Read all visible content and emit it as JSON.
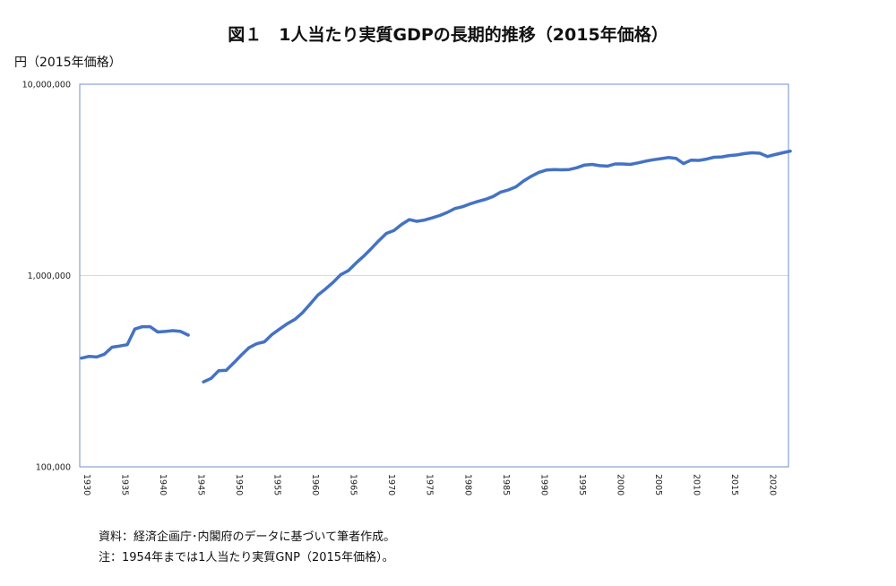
{
  "title": "図１　1人当たり実質GDPの長期的推移（2015年価格）",
  "notes": [
    "資料：経済企画庁･内閣府のデータに基づいて筆者作成。",
    "注：1954年までは1人当たり実質GNP（2015年価格）。"
  ],
  "chart_data": {
    "type": "line",
    "title": "図１　1人当たり実質GDPの長期的推移（2015年価格）",
    "ylabel": "円（2015年価格）",
    "xlabel": "",
    "yscale": "log",
    "ylim": [
      100000,
      10000000
    ],
    "xlim": [
      1930,
      2023
    ],
    "ytick_labels": [
      "100,000",
      "1,000,000",
      "10,000,000"
    ],
    "ytick_values": [
      100000,
      1000000,
      10000000
    ],
    "xtick_labels": [
      "1930",
      "1935",
      "1940",
      "1945",
      "1950",
      "1955",
      "1960",
      "1965",
      "1970",
      "1975",
      "1980",
      "1985",
      "1990",
      "1995",
      "2000",
      "2005",
      "2010",
      "2015",
      "2020"
    ],
    "grid": "horizontal",
    "legend": "none",
    "line_color": "#4472c4",
    "series": [
      {
        "segments": [
          {
            "x": [
              1930,
              1931,
              1932,
              1933,
              1934,
              1935,
              1936,
              1937,
              1938,
              1939,
              1940,
              1941,
              1942,
              1943,
              1944
            ],
            "y": [
              370000,
              378000,
              375000,
              388000,
              422000,
              428000,
              435000,
              525000,
              540000,
              540000,
              507000,
              510000,
              515000,
              510000,
              488000
            ]
          },
          {
            "x": [
              1946,
              1947,
              1948,
              1949,
              1950,
              1951,
              1952,
              1953,
              1954,
              1955,
              1956,
              1957,
              1958,
              1959,
              1960,
              1961,
              1962,
              1963,
              1964,
              1965,
              1966,
              1967,
              1968,
              1969,
              1970,
              1971,
              1972,
              1973,
              1974,
              1975,
              1976,
              1977,
              1978,
              1979,
              1980,
              1981,
              1982,
              1983,
              1984,
              1985,
              1986,
              1987,
              1988,
              1989,
              1990,
              1991,
              1992,
              1993,
              1994,
              1995,
              1996,
              1997,
              1998,
              1999,
              2000,
              2001,
              2002,
              2003,
              2004,
              2005,
              2006,
              2007,
              2008,
              2009,
              2010,
              2011,
              2012,
              2013,
              2014,
              2015,
              2016,
              2017,
              2018,
              2019,
              2020,
              2021,
              2022,
              2023
            ],
            "y": [
              278000,
              290000,
              318000,
              320000,
              350000,
              385000,
              420000,
              440000,
              450000,
              492000,
              525000,
              560000,
              590000,
              640000,
              710000,
              790000,
              850000,
              920000,
              1010000,
              1060000,
              1160000,
              1260000,
              1380000,
              1520000,
              1660000,
              1720000,
              1850000,
              1960000,
              1920000,
              1950000,
              2000000,
              2060000,
              2140000,
              2240000,
              2290000,
              2370000,
              2440000,
              2500000,
              2590000,
              2730000,
              2800000,
              2910000,
              3120000,
              3300000,
              3460000,
              3560000,
              3580000,
              3570000,
              3580000,
              3660000,
              3780000,
              3810000,
              3750000,
              3730000,
              3830000,
              3830000,
              3810000,
              3880000,
              3960000,
              4030000,
              4080000,
              4140000,
              4100000,
              3850000,
              4010000,
              4000000,
              4060000,
              4150000,
              4170000,
              4240000,
              4270000,
              4340000,
              4380000,
              4360000,
              4190000,
              4290000,
              4380000,
              4470000
            ]
          }
        ]
      }
    ]
  }
}
